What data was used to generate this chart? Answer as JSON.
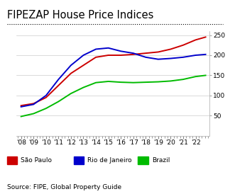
{
  "title": "FIPEZAP House Price Indices",
  "source": "Source: FIPE, Global Property Guide",
  "years": [
    2008,
    2009,
    2010,
    2011,
    2012,
    2013,
    2014,
    2015,
    2016,
    2017,
    2018,
    2019,
    2020,
    2021,
    2022,
    2022.8
  ],
  "sao_paulo": [
    75,
    80,
    95,
    125,
    155,
    175,
    195,
    200,
    200,
    202,
    205,
    208,
    215,
    225,
    238,
    245
  ],
  "rio_janeiro": [
    72,
    78,
    100,
    140,
    175,
    200,
    215,
    218,
    210,
    205,
    195,
    190,
    192,
    195,
    200,
    202
  ],
  "brazil": [
    48,
    55,
    68,
    85,
    105,
    120,
    132,
    135,
    133,
    132,
    133,
    134,
    136,
    140,
    147,
    150
  ],
  "sao_paulo_color": "#cc0000",
  "rio_janeiro_color": "#0000cc",
  "brazil_color": "#00bb00",
  "ylim": [
    0,
    260
  ],
  "yticks": [
    50,
    100,
    150,
    200,
    250
  ],
  "xlim": [
    2007.6,
    2023.1
  ],
  "xtick_labels": [
    "'08",
    "'09",
    "'10",
    "'11",
    "'12",
    "'13",
    "'14",
    "'15",
    "'16",
    "'17",
    "'18",
    "'19",
    "'20",
    "'21",
    "'22"
  ],
  "xtick_positions": [
    2008,
    2009,
    2010,
    2011,
    2012,
    2013,
    2014,
    2015,
    2016,
    2017,
    2018,
    2019,
    2020,
    2021,
    2022
  ],
  "legend_labels": [
    "São Paulo",
    "Rio de Janeiro",
    "Brazil"
  ],
  "title_fontsize": 10.5,
  "label_fontsize": 6.5,
  "source_fontsize": 6.5,
  "line_width": 1.4,
  "background_color": "#ffffff",
  "grid_color": "#cccccc"
}
